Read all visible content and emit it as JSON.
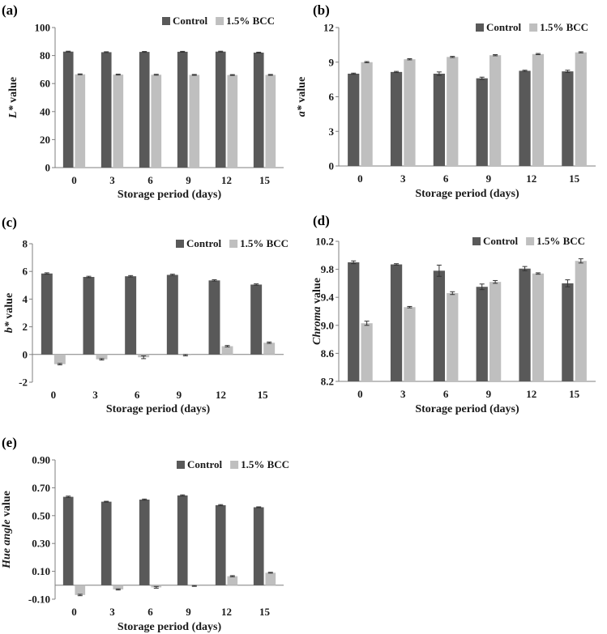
{
  "figure": {
    "colors": {
      "control": "#595959",
      "bcc": "#bfbfbf"
    }
  },
  "chart_data": [
    {
      "panel_label": "(a)",
      "type": "bar",
      "ylabel_italic": "L*",
      "ylabel_rest": " value",
      "xlabel": "Storage period (days)",
      "categories": [
        "0",
        "3",
        "6",
        "9",
        "12",
        "15"
      ],
      "ylim": [
        0,
        100
      ],
      "yticks": [
        "0",
        "20",
        "40",
        "60",
        "80",
        "100"
      ],
      "ytick_values": [
        0,
        20,
        40,
        60,
        80,
        100
      ],
      "series": [
        {
          "name": "Control",
          "values": [
            82.8,
            82.4,
            82.6,
            82.7,
            82.8,
            82.1
          ],
          "errors": [
            0.3,
            0.3,
            0.3,
            0.3,
            0.3,
            0.3
          ]
        },
        {
          "name": "1.5% BCC",
          "values": [
            66.6,
            66.4,
            66.3,
            66.2,
            66.1,
            66.2
          ],
          "errors": [
            0.3,
            0.3,
            0.3,
            0.3,
            0.3,
            0.3
          ]
        }
      ]
    },
    {
      "panel_label": "(b)",
      "type": "bar",
      "ylabel_italic": "a*",
      "ylabel_rest": " value",
      "xlabel": "Storage period (days)",
      "categories": [
        "0",
        "3",
        "6",
        "9",
        "12",
        "15"
      ],
      "ylim": [
        0,
        12
      ],
      "yticks": [
        "0",
        "3",
        "6",
        "9",
        "12"
      ],
      "ytick_values": [
        0,
        3,
        6,
        9,
        12
      ],
      "series": [
        {
          "name": "Control",
          "values": [
            8.0,
            8.15,
            8.0,
            7.6,
            8.25,
            8.2
          ],
          "errors": [
            0.05,
            0.05,
            0.15,
            0.1,
            0.05,
            0.1
          ]
        },
        {
          "name": "1.5% BCC",
          "values": [
            9.0,
            9.25,
            9.45,
            9.6,
            9.7,
            9.85
          ],
          "errors": [
            0.05,
            0.05,
            0.05,
            0.05,
            0.05,
            0.05
          ]
        }
      ]
    },
    {
      "panel_label": "(c)",
      "type": "bar",
      "ylabel_italic": "b*",
      "ylabel_rest": " value",
      "xlabel": "Storage period (days)",
      "categories": [
        "0",
        "3",
        "6",
        "9",
        "12",
        "15"
      ],
      "ylim": [
        -2,
        8
      ],
      "yticks": [
        "-2",
        "0",
        "2",
        "4",
        "6",
        "8"
      ],
      "ytick_values": [
        -2,
        0,
        2,
        4,
        6,
        8
      ],
      "series": [
        {
          "name": "Control",
          "values": [
            5.85,
            5.6,
            5.65,
            5.75,
            5.35,
            5.05
          ],
          "errors": [
            0.05,
            0.05,
            0.05,
            0.05,
            0.05,
            0.05
          ]
        },
        {
          "name": "1.5% BCC",
          "values": [
            -0.7,
            -0.35,
            -0.2,
            -0.05,
            0.6,
            0.85
          ],
          "errors": [
            0.05,
            0.05,
            0.1,
            0.05,
            0.05,
            0.05
          ]
        }
      ]
    },
    {
      "panel_label": "(d)",
      "type": "bar",
      "ylabel_italic": "Chroma",
      "ylabel_rest": " value",
      "xlabel": "Storage period (days)",
      "categories": [
        "0",
        "3",
        "6",
        "9",
        "12",
        "15"
      ],
      "ylim": [
        8.2,
        10.2
      ],
      "yticks": [
        "8.2",
        "8.6",
        "9.0",
        "9.4",
        "9.8",
        "10.2"
      ],
      "ytick_values": [
        8.2,
        8.6,
        9.0,
        9.4,
        9.8,
        10.2
      ],
      "series": [
        {
          "name": "Control",
          "values": [
            9.9,
            9.87,
            9.78,
            9.55,
            9.81,
            9.6
          ],
          "errors": [
            0.02,
            0.01,
            0.08,
            0.04,
            0.03,
            0.05
          ]
        },
        {
          "name": "1.5% BCC",
          "values": [
            9.03,
            9.26,
            9.46,
            9.62,
            9.74,
            9.92
          ],
          "errors": [
            0.03,
            0.01,
            0.02,
            0.02,
            0.01,
            0.03
          ]
        }
      ]
    },
    {
      "panel_label": "(e)",
      "type": "bar",
      "ylabel_italic": "Hue angle",
      "ylabel_rest": " value",
      "xlabel": "Storage period (days)",
      "categories": [
        "0",
        "3",
        "6",
        "9",
        "12",
        "15"
      ],
      "ylim": [
        -0.1,
        0.9
      ],
      "yticks": [
        "-0.10",
        "0.10",
        "0.30",
        "0.50",
        "0.70",
        "0.90"
      ],
      "ytick_values": [
        -0.1,
        0.1,
        0.3,
        0.5,
        0.7,
        0.9
      ],
      "series": [
        {
          "name": "Control",
          "values": [
            0.635,
            0.6,
            0.615,
            0.645,
            0.575,
            0.56
          ],
          "errors": [
            0.005,
            0.003,
            0.004,
            0.004,
            0.004,
            0.003
          ]
        },
        {
          "name": "1.5% BCC",
          "values": [
            -0.07,
            -0.03,
            -0.015,
            -0.005,
            0.065,
            0.09
          ],
          "errors": [
            0.005,
            0.004,
            0.006,
            0.003,
            0.004,
            0.003
          ]
        }
      ]
    }
  ]
}
